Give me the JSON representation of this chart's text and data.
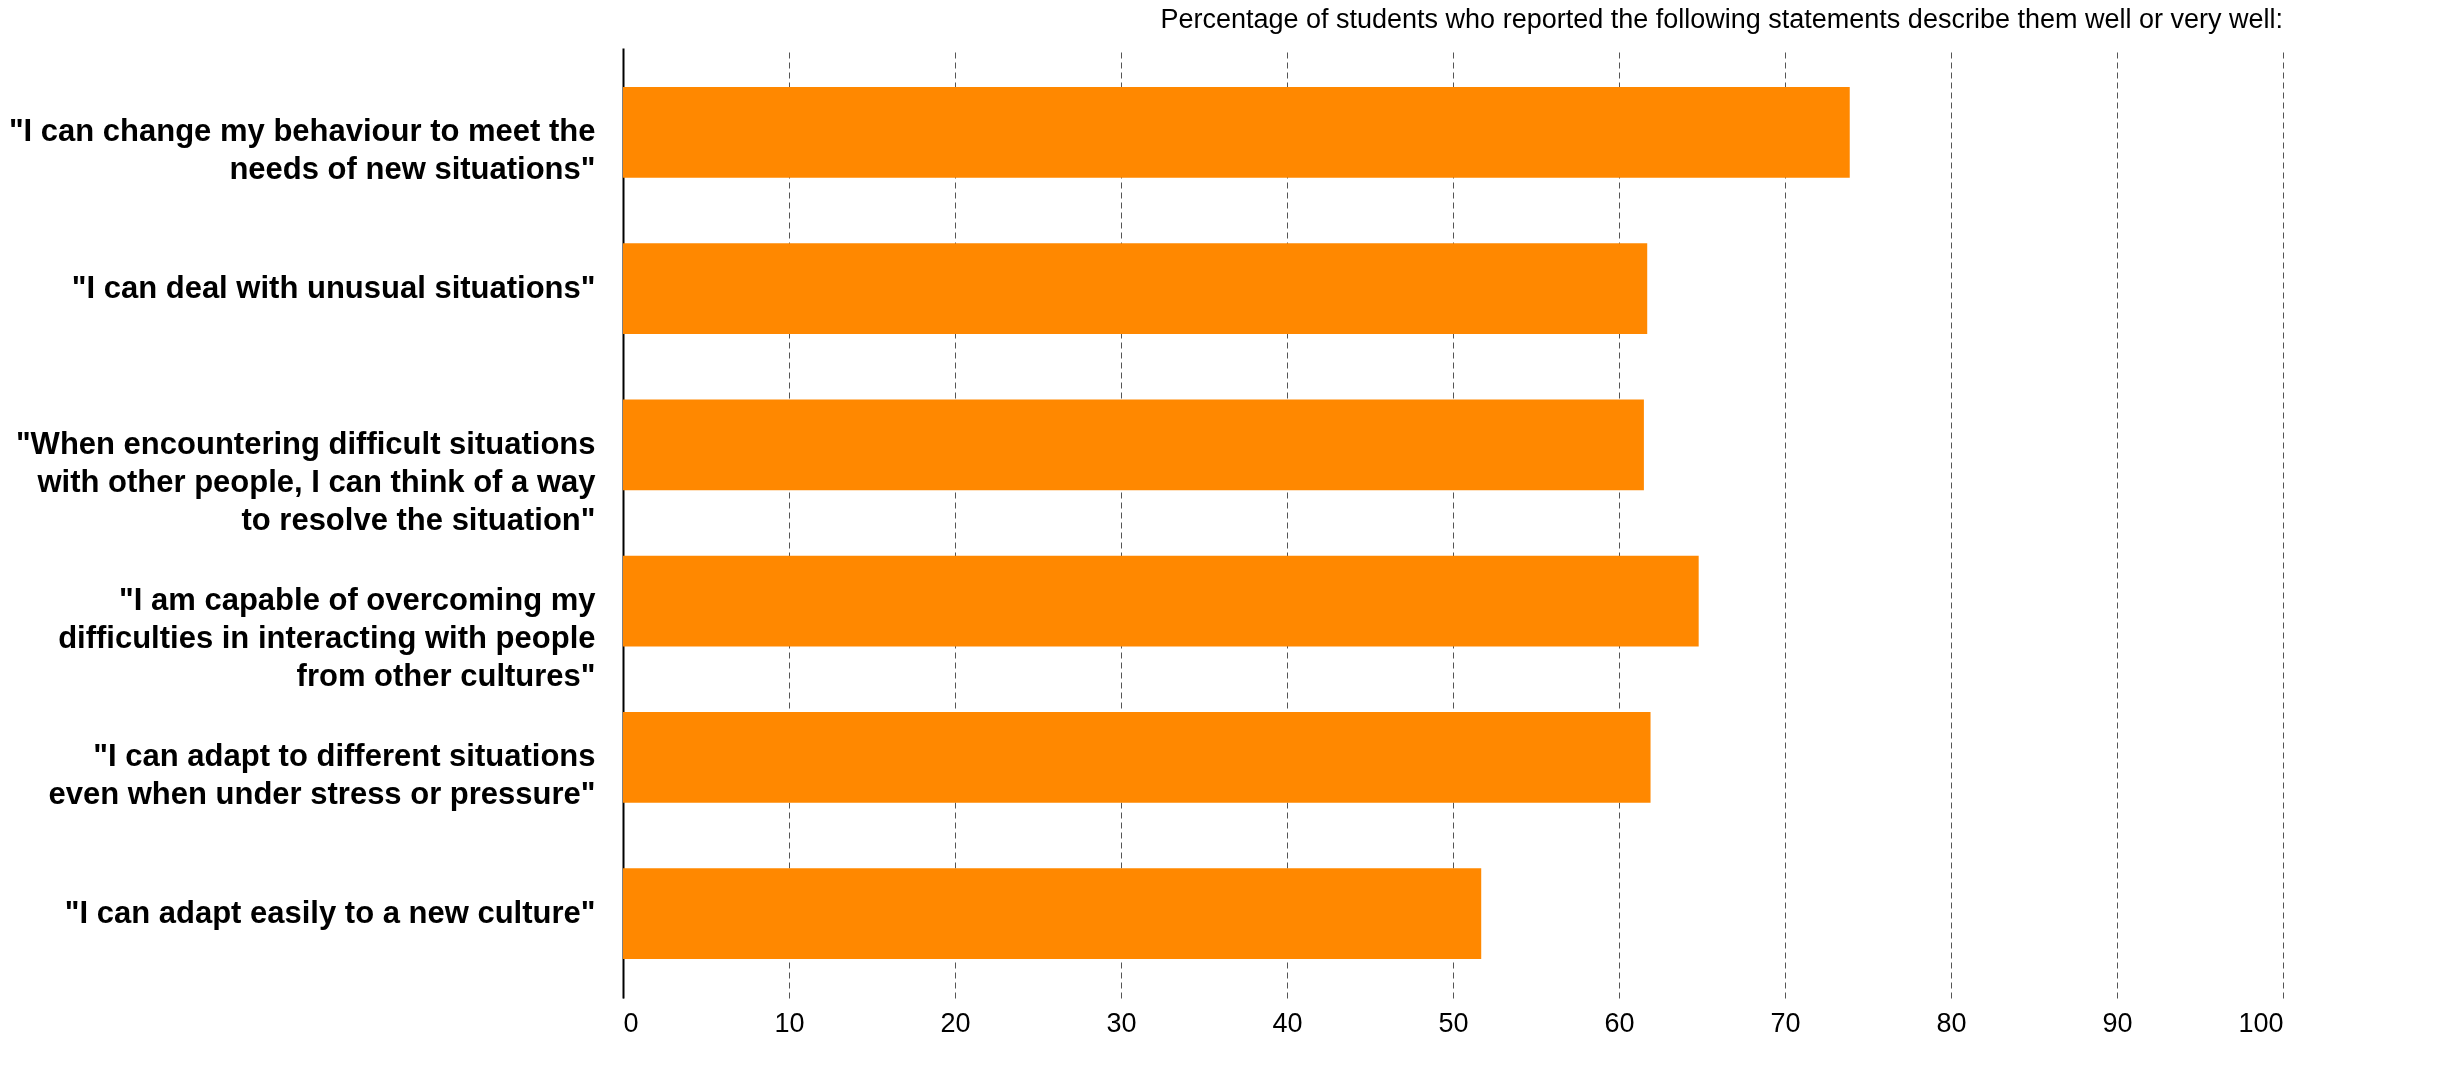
{
  "chart_data": {
    "type": "bar",
    "orientation": "horizontal",
    "title": "Percentage of students who reported the following statements describe them well or very well:",
    "categories": [
      "\"I can change my behaviour to meet the needs of new situations\"",
      "\"I can deal with unusual situations\"",
      "\"When encountering difficult situations with other people, I can think of a way to resolve the situation\"",
      "\"I am capable of overcoming my difficulties in interacting with people from other cultures\"",
      "\"I can adapt to different situations even when under stress or pressure\"",
      "\"I can adapt easily to a new culture\""
    ],
    "values": [
      73.9,
      61.7,
      61.5,
      64.8,
      61.9,
      51.7
    ],
    "color": "#ff8800",
    "xlim": [
      0,
      100
    ],
    "xticks": [
      0,
      10,
      20,
      30,
      40,
      50,
      60,
      70,
      80,
      90,
      100
    ],
    "grid": "x"
  }
}
